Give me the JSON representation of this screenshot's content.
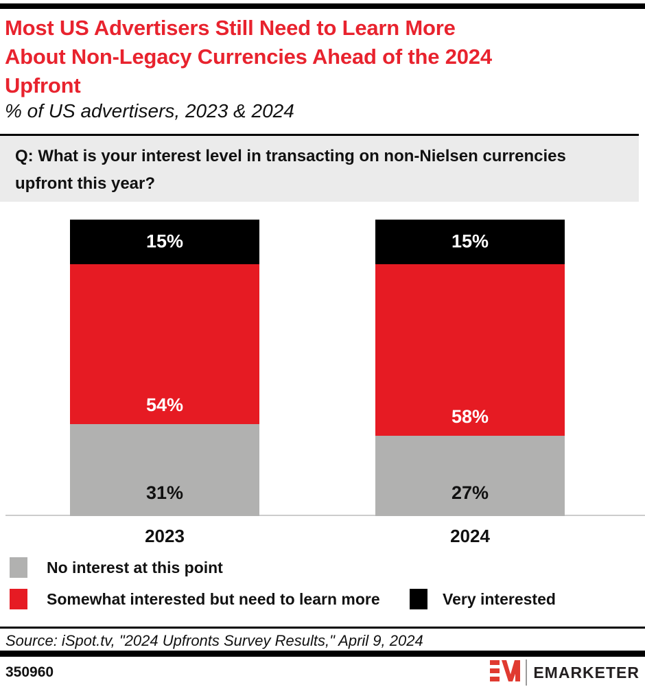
{
  "header": {
    "title_lines": [
      "Most US Advertisers Still Need to Learn More",
      "About Non-Legacy Currencies Ahead of the 2024",
      "Upfront"
    ],
    "subtitle": "% of US advertisers, 2023 & 2024"
  },
  "question": {
    "lines": [
      "Q: What is your interest level in transacting on non-Nielsen currencies",
      "upfront this year?"
    ]
  },
  "chart_data": {
    "type": "bar",
    "stacked": true,
    "title": "Most US Advertisers Still Need to Learn More About Non-Legacy Currencies Ahead of the 2024 Upfront",
    "subtitle": "% of US advertisers, 2023 & 2024",
    "categories": [
      "2023",
      "2024"
    ],
    "series": [
      {
        "name": "No interest at this point",
        "values": [
          31,
          27
        ],
        "color": "#b1b1b0",
        "label_color": "#111111"
      },
      {
        "name": "Somewhat interested but need to learn more",
        "values": [
          54,
          58
        ],
        "color": "#e61b23",
        "label_color": "#ffffff"
      },
      {
        "name": "Very interested",
        "values": [
          15,
          15
        ],
        "color": "#000000",
        "label_color": "#ffffff"
      }
    ],
    "value_suffix": "%",
    "ylim": [
      0,
      100
    ],
    "grid": false,
    "legend_position": "bottom"
  },
  "source": "Source: iSpot.tv, \"2024 Upfronts Survey Results,\" April 9, 2024",
  "footer": {
    "chart_number": "350960",
    "brand_wordmark": "EMARKETER",
    "logo_icon": "em-monogram-icon"
  },
  "colors": {
    "title_red": "#e8232e",
    "accent_red": "#e61b23",
    "logo_red": "#e03a30",
    "bar_gray": "#b1b1b0",
    "question_bg": "#ebebeb",
    "axis_line": "#cccccc",
    "black": "#000000"
  }
}
